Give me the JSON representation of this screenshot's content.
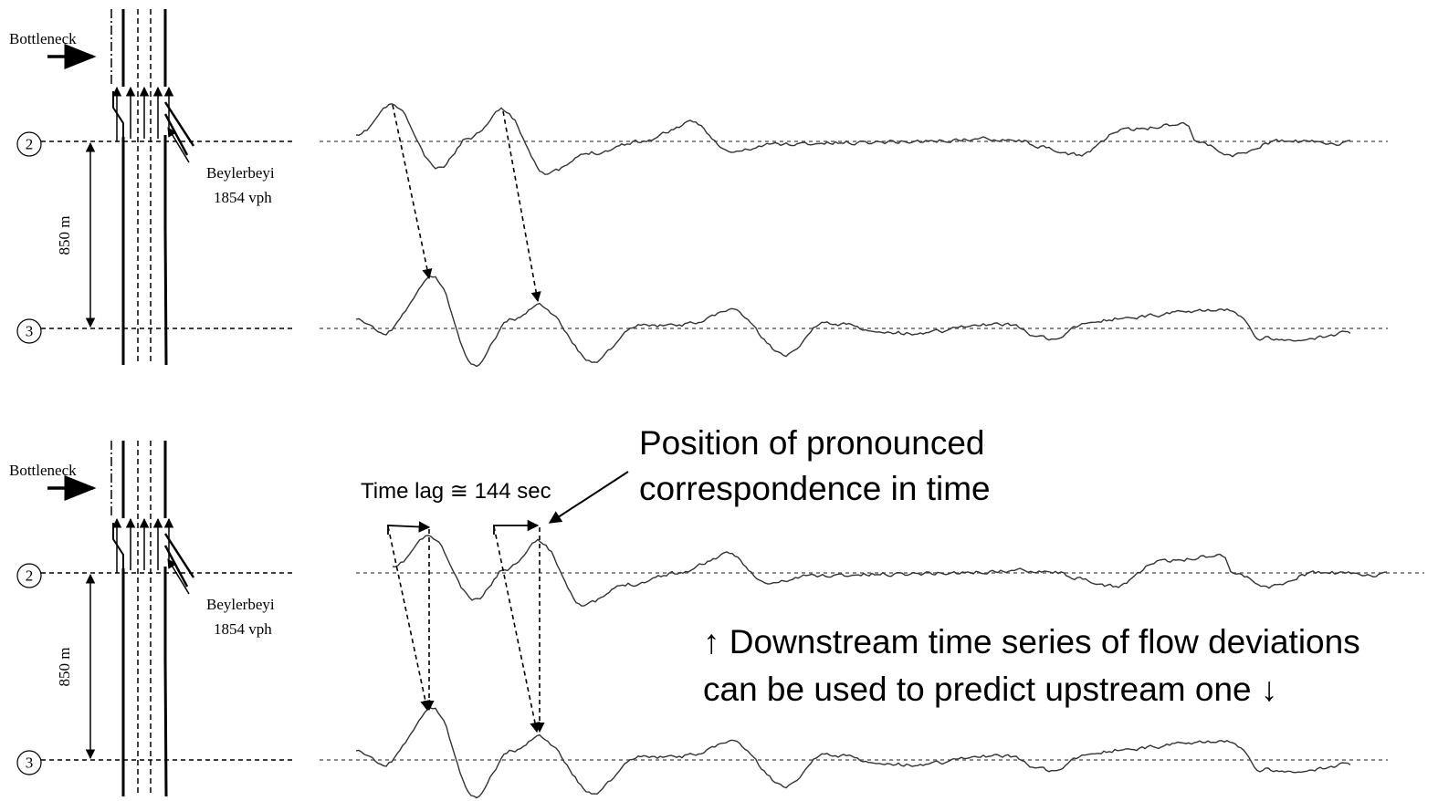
{
  "panels": [
    {
      "bottleneck": "Bottleneck",
      "station_upper": "2",
      "station_lower": "3",
      "distance": "850 m",
      "ramp_name": "Beylerbeyi",
      "ramp_flow": "1854 vph"
    },
    {
      "bottleneck": "Bottleneck",
      "station_upper": "2",
      "station_lower": "3",
      "distance": "850 m",
      "ramp_name": "Beylerbeyi",
      "ramp_flow": "1854 vph"
    }
  ],
  "annotations": {
    "time_lag": "Time lag ≅  144 sec",
    "position": [
      "Position of pronounced",
      "correspondence in time"
    ],
    "prediction": [
      "↑ Downstream time series of flow deviations",
      "can be used to predict upstream one ↓"
    ]
  }
}
